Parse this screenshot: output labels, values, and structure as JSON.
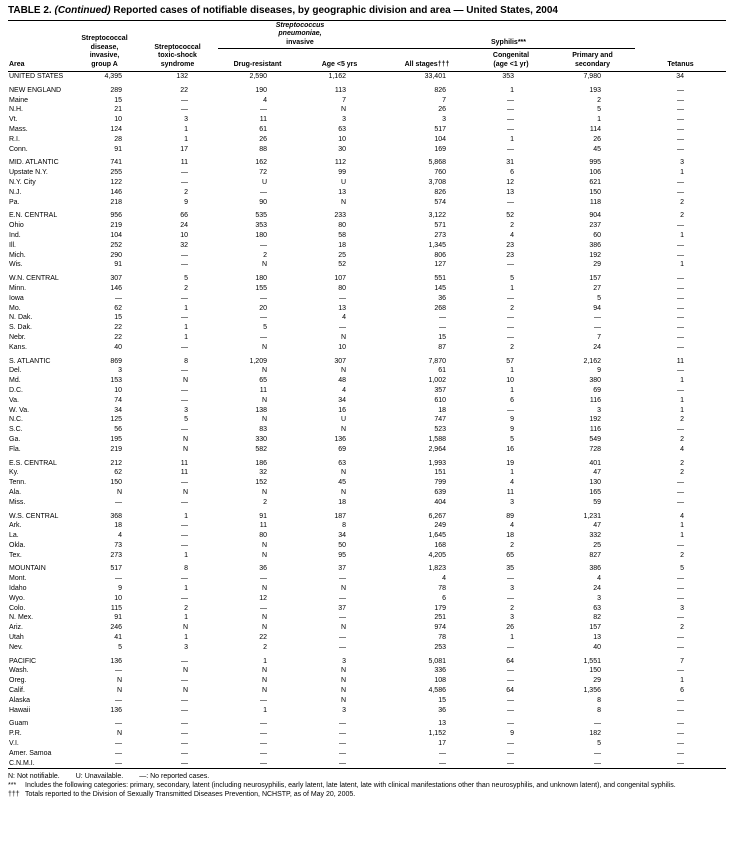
{
  "title": {
    "label": "TABLE 2.",
    "continued": "(Continued)",
    "text": "Reported cases of notifiable diseases, by geographic division and area — United States, 2004"
  },
  "table": {
    "header": {
      "area": "Area",
      "strep_group_a": "Streptococcal\ndisease,\ninvasive,\ngroup A",
      "strep_toxic_shock": "Streptococcal\ntoxic-shock\nsyndrome",
      "pneumo_italic": "Streptococcus\npneumoniae,",
      "pneumo_rest": "invasive",
      "drug_resistant": "Drug-resistant",
      "age_under_5": "Age <5 yrs",
      "syphilis": "Syphilis***",
      "all_stages": "All stages†††",
      "congenital": "Congenital\n(age <1 yr)",
      "primary_secondary": "Primary and\nsecondary",
      "tetanus": "Tetanus"
    },
    "groups": [
      {
        "rows": [
          {
            "area": "UNITED STATES",
            "values": [
              "4,395",
              "132",
              "2,590",
              "1,162",
              "33,401",
              "353",
              "7,980",
              "34"
            ]
          }
        ]
      },
      {
        "rows": [
          {
            "area": "NEW ENGLAND",
            "values": [
              "289",
              "22",
              "190",
              "113",
              "826",
              "1",
              "193",
              "—"
            ]
          },
          {
            "area": "Maine",
            "values": [
              "15",
              "—",
              "4",
              "7",
              "7",
              "—",
              "2",
              "—"
            ]
          },
          {
            "area": "N.H.",
            "values": [
              "21",
              "—",
              "—",
              "N",
              "26",
              "—",
              "5",
              "—"
            ]
          },
          {
            "area": "Vt.",
            "values": [
              "10",
              "3",
              "11",
              "3",
              "3",
              "—",
              "1",
              "—"
            ]
          },
          {
            "area": "Mass.",
            "values": [
              "124",
              "1",
              "61",
              "63",
              "517",
              "—",
              "114",
              "—"
            ]
          },
          {
            "area": "R.I.",
            "values": [
              "28",
              "1",
              "26",
              "10",
              "104",
              "1",
              "26",
              "—"
            ]
          },
          {
            "area": "Conn.",
            "values": [
              "91",
              "17",
              "88",
              "30",
              "169",
              "—",
              "45",
              "—"
            ]
          }
        ]
      },
      {
        "rows": [
          {
            "area": "MID. ATLANTIC",
            "values": [
              "741",
              "11",
              "162",
              "112",
              "5,868",
              "31",
              "995",
              "3"
            ]
          },
          {
            "area": "Upstate N.Y.",
            "values": [
              "255",
              "—",
              "72",
              "99",
              "760",
              "6",
              "106",
              "1"
            ]
          },
          {
            "area": "N.Y. City",
            "values": [
              "122",
              "—",
              "U",
              "U",
              "3,708",
              "12",
              "621",
              "—"
            ]
          },
          {
            "area": "N.J.",
            "values": [
              "146",
              "2",
              "—",
              "13",
              "826",
              "13",
              "150",
              "—"
            ]
          },
          {
            "area": "Pa.",
            "values": [
              "218",
              "9",
              "90",
              "N",
              "574",
              "—",
              "118",
              "2"
            ]
          }
        ]
      },
      {
        "rows": [
          {
            "area": "E.N. CENTRAL",
            "values": [
              "956",
              "66",
              "535",
              "233",
              "3,122",
              "52",
              "904",
              "2"
            ]
          },
          {
            "area": "Ohio",
            "values": [
              "219",
              "24",
              "353",
              "80",
              "571",
              "2",
              "237",
              "—"
            ]
          },
          {
            "area": "Ind.",
            "values": [
              "104",
              "10",
              "180",
              "58",
              "273",
              "4",
              "60",
              "1"
            ]
          },
          {
            "area": "Ill.",
            "values": [
              "252",
              "32",
              "—",
              "18",
              "1,345",
              "23",
              "386",
              "—"
            ]
          },
          {
            "area": "Mich.",
            "values": [
              "290",
              "—",
              "2",
              "25",
              "806",
              "23",
              "192",
              "—"
            ]
          },
          {
            "area": "Wis.",
            "values": [
              "91",
              "—",
              "N",
              "52",
              "127",
              "—",
              "29",
              "1"
            ]
          }
        ]
      },
      {
        "rows": [
          {
            "area": "W.N. CENTRAL",
            "values": [
              "307",
              "5",
              "180",
              "107",
              "551",
              "5",
              "157",
              "—"
            ]
          },
          {
            "area": "Minn.",
            "values": [
              "146",
              "2",
              "155",
              "80",
              "145",
              "1",
              "27",
              "—"
            ]
          },
          {
            "area": "Iowa",
            "values": [
              "—",
              "—",
              "—",
              "—",
              "36",
              "—",
              "5",
              "—"
            ]
          },
          {
            "area": "Mo.",
            "values": [
              "62",
              "1",
              "20",
              "13",
              "268",
              "2",
              "94",
              "—"
            ]
          },
          {
            "area": "N. Dak.",
            "values": [
              "15",
              "—",
              "—",
              "4",
              "—",
              "—",
              "—",
              "—"
            ]
          },
          {
            "area": "S. Dak.",
            "values": [
              "22",
              "1",
              "5",
              "—",
              "—",
              "—",
              "—",
              "—"
            ]
          },
          {
            "area": "Nebr.",
            "values": [
              "22",
              "1",
              "—",
              "N",
              "15",
              "—",
              "7",
              "—"
            ]
          },
          {
            "area": "Kans.",
            "values": [
              "40",
              "—",
              "N",
              "10",
              "87",
              "2",
              "24",
              "—"
            ]
          }
        ]
      },
      {
        "rows": [
          {
            "area": "S. ATLANTIC",
            "values": [
              "869",
              "8",
              "1,209",
              "307",
              "7,870",
              "57",
              "2,162",
              "11"
            ]
          },
          {
            "area": "Del.",
            "values": [
              "3",
              "—",
              "N",
              "N",
              "61",
              "1",
              "9",
              "—"
            ]
          },
          {
            "area": "Md.",
            "values": [
              "153",
              "N",
              "65",
              "48",
              "1,002",
              "10",
              "380",
              "1"
            ]
          },
          {
            "area": "D.C.",
            "values": [
              "10",
              "—",
              "11",
              "4",
              "357",
              "1",
              "69",
              "—"
            ]
          },
          {
            "area": "Va.",
            "values": [
              "74",
              "—",
              "N",
              "34",
              "610",
              "6",
              "116",
              "1"
            ]
          },
          {
            "area": "W. Va.",
            "values": [
              "34",
              "3",
              "138",
              "16",
              "18",
              "—",
              "3",
              "1"
            ]
          },
          {
            "area": "N.C.",
            "values": [
              "125",
              "5",
              "N",
              "U",
              "747",
              "9",
              "192",
              "2"
            ]
          },
          {
            "area": "S.C.",
            "values": [
              "56",
              "—",
              "83",
              "N",
              "523",
              "9",
              "116",
              "—"
            ]
          },
          {
            "area": "Ga.",
            "values": [
              "195",
              "N",
              "330",
              "136",
              "1,588",
              "5",
              "549",
              "2"
            ]
          },
          {
            "area": "Fla.",
            "values": [
              "219",
              "N",
              "582",
              "69",
              "2,964",
              "16",
              "728",
              "4"
            ]
          }
        ]
      },
      {
        "rows": [
          {
            "area": "E.S. CENTRAL",
            "values": [
              "212",
              "11",
              "186",
              "63",
              "1,993",
              "19",
              "401",
              "2"
            ]
          },
          {
            "area": "Ky.",
            "values": [
              "62",
              "11",
              "32",
              "N",
              "151",
              "1",
              "47",
              "2"
            ]
          },
          {
            "area": "Tenn.",
            "values": [
              "150",
              "—",
              "152",
              "45",
              "799",
              "4",
              "130",
              "—"
            ]
          },
          {
            "area": "Ala.",
            "values": [
              "N",
              "N",
              "N",
              "N",
              "639",
              "11",
              "165",
              "—"
            ]
          },
          {
            "area": "Miss.",
            "values": [
              "—",
              "—",
              "2",
              "18",
              "404",
              "3",
              "59",
              "—"
            ]
          }
        ]
      },
      {
        "rows": [
          {
            "area": "W.S. CENTRAL",
            "values": [
              "368",
              "1",
              "91",
              "187",
              "6,267",
              "89",
              "1,231",
              "4"
            ]
          },
          {
            "area": "Ark.",
            "values": [
              "18",
              "—",
              "11",
              "8",
              "249",
              "4",
              "47",
              "1"
            ]
          },
          {
            "area": "La.",
            "values": [
              "4",
              "—",
              "80",
              "34",
              "1,645",
              "18",
              "332",
              "1"
            ]
          },
          {
            "area": "Okla.",
            "values": [
              "73",
              "—",
              "N",
              "50",
              "168",
              "2",
              "25",
              "—"
            ]
          },
          {
            "area": "Tex.",
            "values": [
              "273",
              "1",
              "N",
              "95",
              "4,205",
              "65",
              "827",
              "2"
            ]
          }
        ]
      },
      {
        "rows": [
          {
            "area": "MOUNTAIN",
            "values": [
              "517",
              "8",
              "36",
              "37",
              "1,823",
              "35",
              "386",
              "5"
            ]
          },
          {
            "area": "Mont.",
            "values": [
              "—",
              "—",
              "—",
              "—",
              "4",
              "—",
              "4",
              "—"
            ]
          },
          {
            "area": "Idaho",
            "values": [
              "9",
              "1",
              "N",
              "N",
              "78",
              "3",
              "24",
              "—"
            ]
          },
          {
            "area": "Wyo.",
            "values": [
              "10",
              "—",
              "12",
              "—",
              "6",
              "—",
              "3",
              "—"
            ]
          },
          {
            "area": "Colo.",
            "values": [
              "115",
              "2",
              "—",
              "37",
              "179",
              "2",
              "63",
              "3"
            ]
          },
          {
            "area": "N. Mex.",
            "values": [
              "91",
              "1",
              "N",
              "—",
              "251",
              "3",
              "82",
              "—"
            ]
          },
          {
            "area": "Ariz.",
            "values": [
              "246",
              "N",
              "N",
              "N",
              "974",
              "26",
              "157",
              "2"
            ]
          },
          {
            "area": "Utah",
            "values": [
              "41",
              "1",
              "22",
              "—",
              "78",
              "1",
              "13",
              "—"
            ]
          },
          {
            "area": "Nev.",
            "values": [
              "5",
              "3",
              "2",
              "—",
              "253",
              "—",
              "40",
              "—"
            ]
          }
        ]
      },
      {
        "rows": [
          {
            "area": "PACIFIC",
            "values": [
              "136",
              "—",
              "1",
              "3",
              "5,081",
              "64",
              "1,551",
              "7"
            ]
          },
          {
            "area": "Wash.",
            "values": [
              "—",
              "N",
              "N",
              "N",
              "336",
              "—",
              "150",
              "—"
            ]
          },
          {
            "area": "Oreg.",
            "values": [
              "N",
              "—",
              "N",
              "N",
              "108",
              "—",
              "29",
              "1"
            ]
          },
          {
            "area": "Calif.",
            "values": [
              "N",
              "N",
              "N",
              "N",
              "4,586",
              "64",
              "1,356",
              "6"
            ]
          },
          {
            "area": "Alaska",
            "values": [
              "—",
              "—",
              "—",
              "N",
              "15",
              "—",
              "8",
              "—"
            ]
          },
          {
            "area": "Hawaii",
            "values": [
              "136",
              "—",
              "1",
              "3",
              "36",
              "—",
              "8",
              "—"
            ]
          }
        ]
      },
      {
        "rows": [
          {
            "area": "Guam",
            "values": [
              "—",
              "—",
              "—",
              "—",
              "13",
              "—",
              "—",
              "—"
            ]
          },
          {
            "area": "P.R.",
            "values": [
              "N",
              "—",
              "—",
              "—",
              "1,152",
              "9",
              "182",
              "—"
            ]
          },
          {
            "area": "V.I.",
            "values": [
              "—",
              "—",
              "—",
              "—",
              "17",
              "—",
              "5",
              "—"
            ]
          },
          {
            "area": "Amer. Samoa",
            "values": [
              "—",
              "—",
              "—",
              "—",
              "—",
              "—",
              "—",
              "—"
            ]
          },
          {
            "area": "C.N.M.I.",
            "values": [
              "—",
              "—",
              "—",
              "—",
              "—",
              "—",
              "—",
              "—"
            ]
          }
        ]
      }
    ]
  },
  "footnotes": {
    "legend": {
      "not_notifiable": "N: Not notifiable.",
      "unavailable": "U: Unavailable.",
      "no_cases": "—: No reported cases."
    },
    "triple_star": {
      "marker": "***",
      "text": "Includes the following categories: primary, secondary, latent (including neurosyphilis, early latent, late latent, late with clinical manifestations other than neurosyphilis, and unknown latent), and congenital syphilis."
    },
    "triple_dagger": {
      "marker": "†††",
      "text": "Totals reported to the Division of Sexually Transmitted Diseases Prevention, NCHSTP, as of May 20, 2005."
    }
  }
}
